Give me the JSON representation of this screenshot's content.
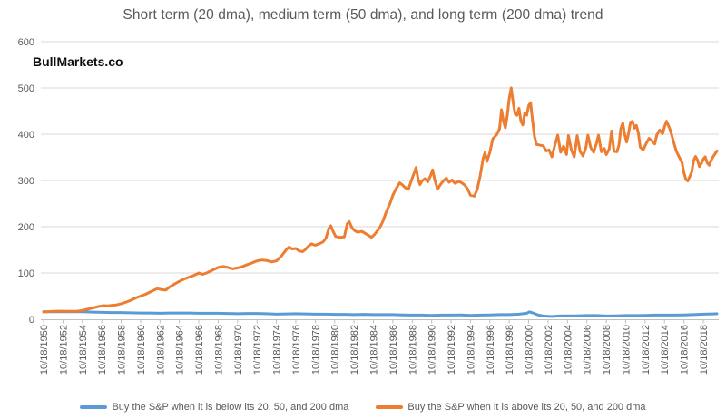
{
  "title": "Short term (20 dma), medium term (50 dma), and long term (200 dma) trend",
  "watermark": "BullMarkets.co",
  "colors": {
    "series_below": "#5B9BD5",
    "series_above": "#ED7D31",
    "gridline": "#D9D9D9",
    "axis_line": "#BFBFBF",
    "label_text": "#595959",
    "title_text": "#595959",
    "watermark_text": "#0d0d0d",
    "background": "#FFFFFF"
  },
  "chart_data": {
    "type": "line",
    "title": "Short term (20 dma), medium term (50 dma), and long term (200 dma) trend",
    "xlabel": "",
    "ylabel": "",
    "ylim": [
      0,
      600
    ],
    "y_ticks": [
      0,
      100,
      200,
      300,
      400,
      500,
      600
    ],
    "x_tick_years": [
      1950,
      1952,
      1954,
      1956,
      1958,
      1960,
      1962,
      1964,
      1966,
      1968,
      1970,
      1972,
      1974,
      1976,
      1978,
      1980,
      1982,
      1984,
      1986,
      1988,
      1990,
      1992,
      1994,
      1996,
      1998,
      2000,
      2002,
      2004,
      2006,
      2008,
      2010,
      2012,
      2014,
      2016,
      2018
    ],
    "x_tick_labels": [
      "10/18/1950",
      "10/18/1952",
      "10/18/1954",
      "10/18/1956",
      "10/18/1958",
      "10/18/1960",
      "10/18/1962",
      "10/18/1964",
      "10/18/1966",
      "10/18/1968",
      "10/18/1970",
      "10/18/1972",
      "10/18/1974",
      "10/18/1976",
      "10/18/1978",
      "10/18/1980",
      "10/18/1982",
      "10/18/1984",
      "10/18/1986",
      "10/18/1988",
      "10/18/1990",
      "10/18/1992",
      "10/18/1994",
      "10/18/1996",
      "10/18/1998",
      "10/18/2000",
      "10/18/2002",
      "10/18/2004",
      "10/18/2006",
      "10/18/2008",
      "10/18/2010",
      "10/18/2012",
      "10/18/2014",
      "10/18/2016",
      "10/18/2018"
    ],
    "grid": "horizontal",
    "legend_position": "bottom",
    "series": [
      {
        "name": "Buy the S&P when it is below its 20, 50, and 200 dma",
        "color": "#5B9BD5",
        "points": [
          [
            1950,
            16
          ],
          [
            1951,
            16
          ],
          [
            1952,
            16.5
          ],
          [
            1953,
            16
          ],
          [
            1954,
            16
          ],
          [
            1955,
            15.5
          ],
          [
            1956,
            15
          ],
          [
            1957,
            14.5
          ],
          [
            1958,
            14.5
          ],
          [
            1959,
            14
          ],
          [
            1960,
            13.5
          ],
          [
            1961,
            13.5
          ],
          [
            1962,
            13
          ],
          [
            1963,
            13.5
          ],
          [
            1964,
            13.5
          ],
          [
            1965,
            13.5
          ],
          [
            1966,
            13
          ],
          [
            1967,
            13
          ],
          [
            1968,
            13
          ],
          [
            1969,
            12.5
          ],
          [
            1970,
            12
          ],
          [
            1971,
            12.5
          ],
          [
            1972,
            12.5
          ],
          [
            1973,
            12
          ],
          [
            1974,
            11
          ],
          [
            1975,
            11.5
          ],
          [
            1976,
            12
          ],
          [
            1977,
            11.5
          ],
          [
            1978,
            11
          ],
          [
            1979,
            11
          ],
          [
            1980,
            10.5
          ],
          [
            1981,
            10.5
          ],
          [
            1982,
            10
          ],
          [
            1983,
            10.5
          ],
          [
            1984,
            10
          ],
          [
            1985,
            10
          ],
          [
            1986,
            10
          ],
          [
            1987,
            9.5
          ],
          [
            1988,
            9
          ],
          [
            1989,
            9
          ],
          [
            1990,
            8.5
          ],
          [
            1991,
            9
          ],
          [
            1992,
            9
          ],
          [
            1993,
            9.5
          ],
          [
            1994,
            8.5
          ],
          [
            1995,
            9
          ],
          [
            1996,
            9.5
          ],
          [
            1997,
            10
          ],
          [
            1998,
            10
          ],
          [
            1999,
            11
          ],
          [
            1999.8,
            13
          ],
          [
            2000.1,
            16
          ],
          [
            2000.4,
            14
          ],
          [
            2001,
            9
          ],
          [
            2001.5,
            7
          ],
          [
            2002,
            6.5
          ],
          [
            2002.6,
            6
          ],
          [
            2003,
            7
          ],
          [
            2004,
            7.5
          ],
          [
            2005,
            7.5
          ],
          [
            2006,
            8
          ],
          [
            2007,
            8
          ],
          [
            2008,
            7
          ],
          [
            2009,
            7.5
          ],
          [
            2010,
            8
          ],
          [
            2011,
            8
          ],
          [
            2012,
            8.5
          ],
          [
            2013,
            9
          ],
          [
            2014,
            9
          ],
          [
            2015,
            9
          ],
          [
            2016,
            9.5
          ],
          [
            2017,
            10
          ],
          [
            2018,
            11
          ],
          [
            2019,
            11.5
          ],
          [
            2019.4,
            12
          ]
        ]
      },
      {
        "name": "Buy the S&P when it is above its 20, 50, and 200 dma",
        "color": "#ED7D31",
        "points": [
          [
            1950,
            16
          ],
          [
            1950.5,
            16.5
          ],
          [
            1951,
            17
          ],
          [
            1951.5,
            17.5
          ],
          [
            1952,
            17.5
          ],
          [
            1952.5,
            17
          ],
          [
            1953,
            17
          ],
          [
            1953.5,
            17.5
          ],
          [
            1954,
            19
          ],
          [
            1954.5,
            21.5
          ],
          [
            1955,
            24
          ],
          [
            1955.4,
            26
          ],
          [
            1955.8,
            28
          ],
          [
            1956.2,
            29.5
          ],
          [
            1956.6,
            29
          ],
          [
            1957,
            30
          ],
          [
            1957.5,
            31
          ],
          [
            1958,
            33.5
          ],
          [
            1958.5,
            37
          ],
          [
            1959,
            41
          ],
          [
            1959.5,
            46
          ],
          [
            1960,
            50
          ],
          [
            1960.5,
            54
          ],
          [
            1961,
            59
          ],
          [
            1961.7,
            66
          ],
          [
            1962.2,
            64
          ],
          [
            1962.6,
            63
          ],
          [
            1963,
            70
          ],
          [
            1963.5,
            76
          ],
          [
            1964,
            82
          ],
          [
            1964.5,
            87
          ],
          [
            1965,
            91
          ],
          [
            1965.5,
            95
          ],
          [
            1966,
            100
          ],
          [
            1966.4,
            97
          ],
          [
            1966.8,
            100
          ],
          [
            1967.2,
            104
          ],
          [
            1967.6,
            108
          ],
          [
            1968,
            112
          ],
          [
            1968.5,
            114
          ],
          [
            1969,
            112
          ],
          [
            1969.5,
            109
          ],
          [
            1970,
            111
          ],
          [
            1970.5,
            114
          ],
          [
            1971,
            118
          ],
          [
            1971.5,
            122
          ],
          [
            1972,
            126
          ],
          [
            1972.5,
            128
          ],
          [
            1973,
            127
          ],
          [
            1973.5,
            124
          ],
          [
            1974,
            126
          ],
          [
            1974.5,
            136
          ],
          [
            1975,
            150
          ],
          [
            1975.3,
            156
          ],
          [
            1975.6,
            152
          ],
          [
            1976,
            153
          ],
          [
            1976.3,
            148
          ],
          [
            1976.7,
            146
          ],
          [
            1977,
            151
          ],
          [
            1977.3,
            158
          ],
          [
            1977.6,
            163
          ],
          [
            1978,
            160
          ],
          [
            1978.4,
            163
          ],
          [
            1978.8,
            167
          ],
          [
            1979.1,
            175
          ],
          [
            1979.4,
            196
          ],
          [
            1979.6,
            202
          ],
          [
            1979.8,
            192
          ],
          [
            1980.1,
            179
          ],
          [
            1980.5,
            177
          ],
          [
            1981,
            178
          ],
          [
            1981.3,
            206
          ],
          [
            1981.5,
            211
          ],
          [
            1981.8,
            197
          ],
          [
            1982.1,
            191
          ],
          [
            1982.4,
            188
          ],
          [
            1982.8,
            190
          ],
          [
            1983.2,
            185
          ],
          [
            1983.5,
            181
          ],
          [
            1983.8,
            177
          ],
          [
            1984.1,
            183
          ],
          [
            1984.4,
            191
          ],
          [
            1984.7,
            200
          ],
          [
            1985,
            213
          ],
          [
            1985.3,
            231
          ],
          [
            1985.7,
            250
          ],
          [
            1986,
            268
          ],
          [
            1986.3,
            281
          ],
          [
            1986.7,
            295
          ],
          [
            1987,
            290
          ],
          [
            1987.3,
            284
          ],
          [
            1987.6,
            281
          ],
          [
            1988,
            305
          ],
          [
            1988.4,
            328
          ],
          [
            1988.6,
            303
          ],
          [
            1988.8,
            291
          ],
          [
            1989,
            299
          ],
          [
            1989.3,
            304
          ],
          [
            1989.6,
            297
          ],
          [
            1989.9,
            311
          ],
          [
            1990.1,
            323
          ],
          [
            1990.3,
            303
          ],
          [
            1990.6,
            281
          ],
          [
            1990.9,
            291
          ],
          [
            1991.2,
            299
          ],
          [
            1991.5,
            305
          ],
          [
            1991.8,
            296
          ],
          [
            1992.1,
            301
          ],
          [
            1992.4,
            294
          ],
          [
            1992.8,
            298
          ],
          [
            1993.1,
            295
          ],
          [
            1993.4,
            290
          ],
          [
            1993.7,
            282
          ],
          [
            1994,
            268
          ],
          [
            1994.4,
            266
          ],
          [
            1994.7,
            281
          ],
          [
            1995,
            310
          ],
          [
            1995.3,
            347
          ],
          [
            1995.5,
            360
          ],
          [
            1995.7,
            341
          ],
          [
            1996,
            361
          ],
          [
            1996.3,
            390
          ],
          [
            1996.7,
            399
          ],
          [
            1997,
            412
          ],
          [
            1997.2,
            453
          ],
          [
            1997.4,
            428
          ],
          [
            1997.6,
            414
          ],
          [
            1997.8,
            441
          ],
          [
            1998,
            478
          ],
          [
            1998.2,
            500
          ],
          [
            1998.4,
            468
          ],
          [
            1998.6,
            444
          ],
          [
            1998.8,
            441
          ],
          [
            1999,
            456
          ],
          [
            1999.2,
            428
          ],
          [
            1999.4,
            420
          ],
          [
            1999.6,
            446
          ],
          [
            1999.8,
            441
          ],
          [
            2000,
            462
          ],
          [
            2000.2,
            468
          ],
          [
            2000.4,
            430
          ],
          [
            2000.6,
            395
          ],
          [
            2000.8,
            378
          ],
          [
            2001.2,
            376
          ],
          [
            2001.5,
            375
          ],
          [
            2001.8,
            364
          ],
          [
            2002.1,
            366
          ],
          [
            2002.4,
            351
          ],
          [
            2002.7,
            376
          ],
          [
            2003,
            398
          ],
          [
            2003.3,
            361
          ],
          [
            2003.6,
            374
          ],
          [
            2003.9,
            356
          ],
          [
            2004.1,
            397
          ],
          [
            2004.4,
            366
          ],
          [
            2004.7,
            351
          ],
          [
            2005,
            397
          ],
          [
            2005.3,
            363
          ],
          [
            2005.6,
            353
          ],
          [
            2005.9,
            371
          ],
          [
            2006.1,
            398
          ],
          [
            2006.4,
            371
          ],
          [
            2006.7,
            361
          ],
          [
            2007,
            381
          ],
          [
            2007.2,
            398
          ],
          [
            2007.5,
            362
          ],
          [
            2007.8,
            369
          ],
          [
            2008,
            356
          ],
          [
            2008.3,
            368
          ],
          [
            2008.55,
            407
          ],
          [
            2008.8,
            363
          ],
          [
            2009.1,
            362
          ],
          [
            2009.3,
            376
          ],
          [
            2009.5,
            412
          ],
          [
            2009.7,
            424
          ],
          [
            2009.9,
            399
          ],
          [
            2010.1,
            383
          ],
          [
            2010.3,
            403
          ],
          [
            2010.5,
            426
          ],
          [
            2010.7,
            428
          ],
          [
            2010.9,
            413
          ],
          [
            2011.1,
            419
          ],
          [
            2011.3,
            403
          ],
          [
            2011.5,
            372
          ],
          [
            2011.8,
            366
          ],
          [
            2012.1,
            379
          ],
          [
            2012.4,
            391
          ],
          [
            2012.7,
            386
          ],
          [
            2013,
            379
          ],
          [
            2013.2,
            398
          ],
          [
            2013.5,
            409
          ],
          [
            2013.8,
            401
          ],
          [
            2014,
            416
          ],
          [
            2014.2,
            428
          ],
          [
            2014.4,
            419
          ],
          [
            2014.6,
            409
          ],
          [
            2014.9,
            386
          ],
          [
            2015.2,
            364
          ],
          [
            2015.5,
            351
          ],
          [
            2015.8,
            339
          ],
          [
            2016,
            317
          ],
          [
            2016.2,
            302
          ],
          [
            2016.4,
            299
          ],
          [
            2016.6,
            308
          ],
          [
            2016.8,
            318
          ],
          [
            2017,
            343
          ],
          [
            2017.2,
            352
          ],
          [
            2017.4,
            344
          ],
          [
            2017.6,
            330
          ],
          [
            2017.8,
            337
          ],
          [
            2018,
            346
          ],
          [
            2018.2,
            351
          ],
          [
            2018.4,
            338
          ],
          [
            2018.6,
            333
          ],
          [
            2018.8,
            343
          ],
          [
            2019,
            351
          ],
          [
            2019.2,
            357
          ],
          [
            2019.4,
            364
          ]
        ]
      }
    ]
  },
  "legend": {
    "below_label": "Buy the S&P when it is below its 20, 50, and 200 dma",
    "above_label": "Buy the S&P when it is above its 20, 50, and 200 dma"
  }
}
